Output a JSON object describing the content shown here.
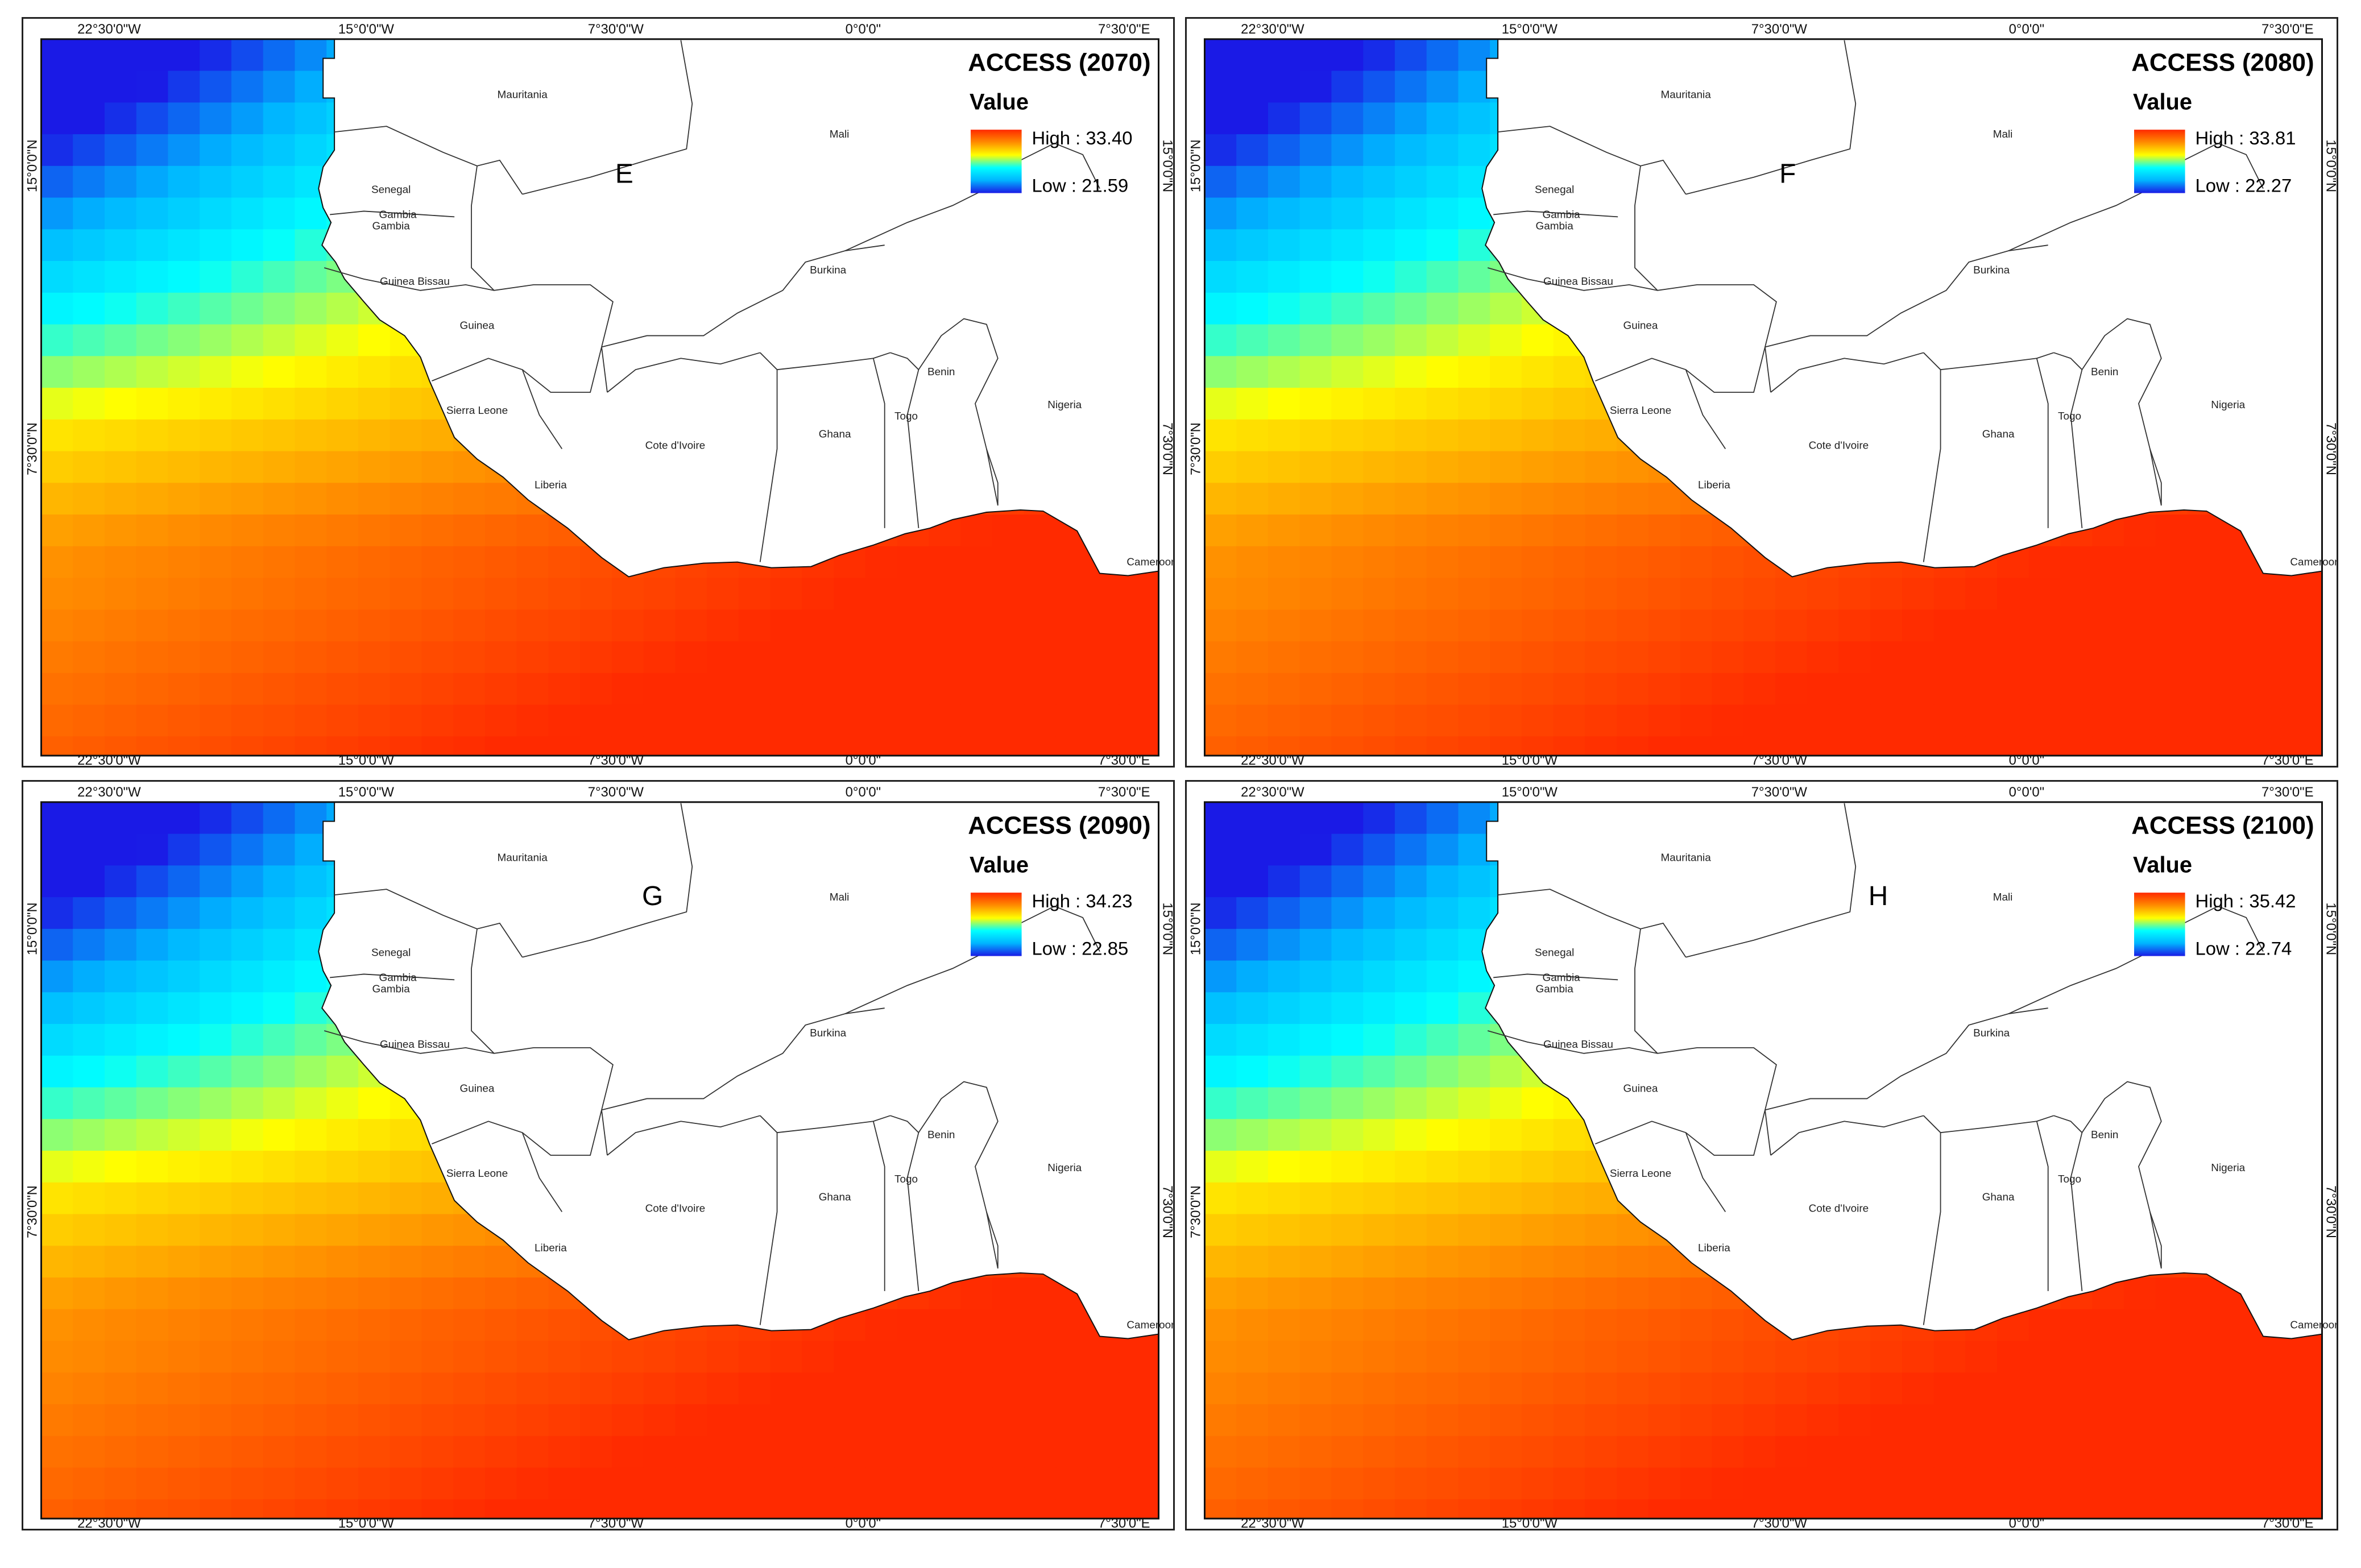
{
  "legend_heading": "Value",
  "ramp_colors": [
    "#1a1ae6",
    "#00b4ff",
    "#00ffff",
    "#ffff00",
    "#ff8c00",
    "#ff2a00"
  ],
  "axis_labels": {
    "top": [
      "22°30'0\"W",
      "15°0'0\"W",
      "7°30'0\"W",
      "0°0'0\"",
      "7°30'0\"E"
    ],
    "bottom": [
      "22°30'0\"W",
      "15°0'0\"W",
      "7°30'0\"W",
      "0°0'0\"",
      "7°30'0\"E"
    ],
    "left": [
      "15°0'0\"N",
      "7°30'0\"N"
    ],
    "right": [
      "15°0'0\"N",
      "7°30'0\"N"
    ]
  },
  "countries": [
    "Mauritania",
    "Mali",
    "Senegal",
    "Gambia",
    "Gambia",
    "Guinea Bissau",
    "Guinea",
    "Sierra Leone",
    "Liberia",
    "Cote d'Ivoire",
    "Burkina",
    "Ghana",
    "Togo",
    "Benin",
    "Nigeria",
    "Cameroon"
  ],
  "panels": [
    {
      "title": "ACCESS (2070)",
      "letter": "E",
      "high_label": "High : 33.40",
      "low_label": "Low : 21.59",
      "high": 33.4,
      "low": 21.59
    },
    {
      "title": "ACCESS (2080)",
      "letter": "F",
      "high_label": "High : 33.81",
      "low_label": "Low : 22.27",
      "high": 33.81,
      "low": 22.27
    },
    {
      "title": "ACCESS (2090)",
      "letter": "G",
      "high_label": "High : 34.23",
      "low_label": "Low : 22.85",
      "high": 34.23,
      "low": 22.85
    },
    {
      "title": "ACCESS (2100)",
      "letter": "H",
      "high_label": "High : 35.42",
      "low_label": "Low : 22.74",
      "high": 35.42,
      "low": 22.74
    }
  ]
}
